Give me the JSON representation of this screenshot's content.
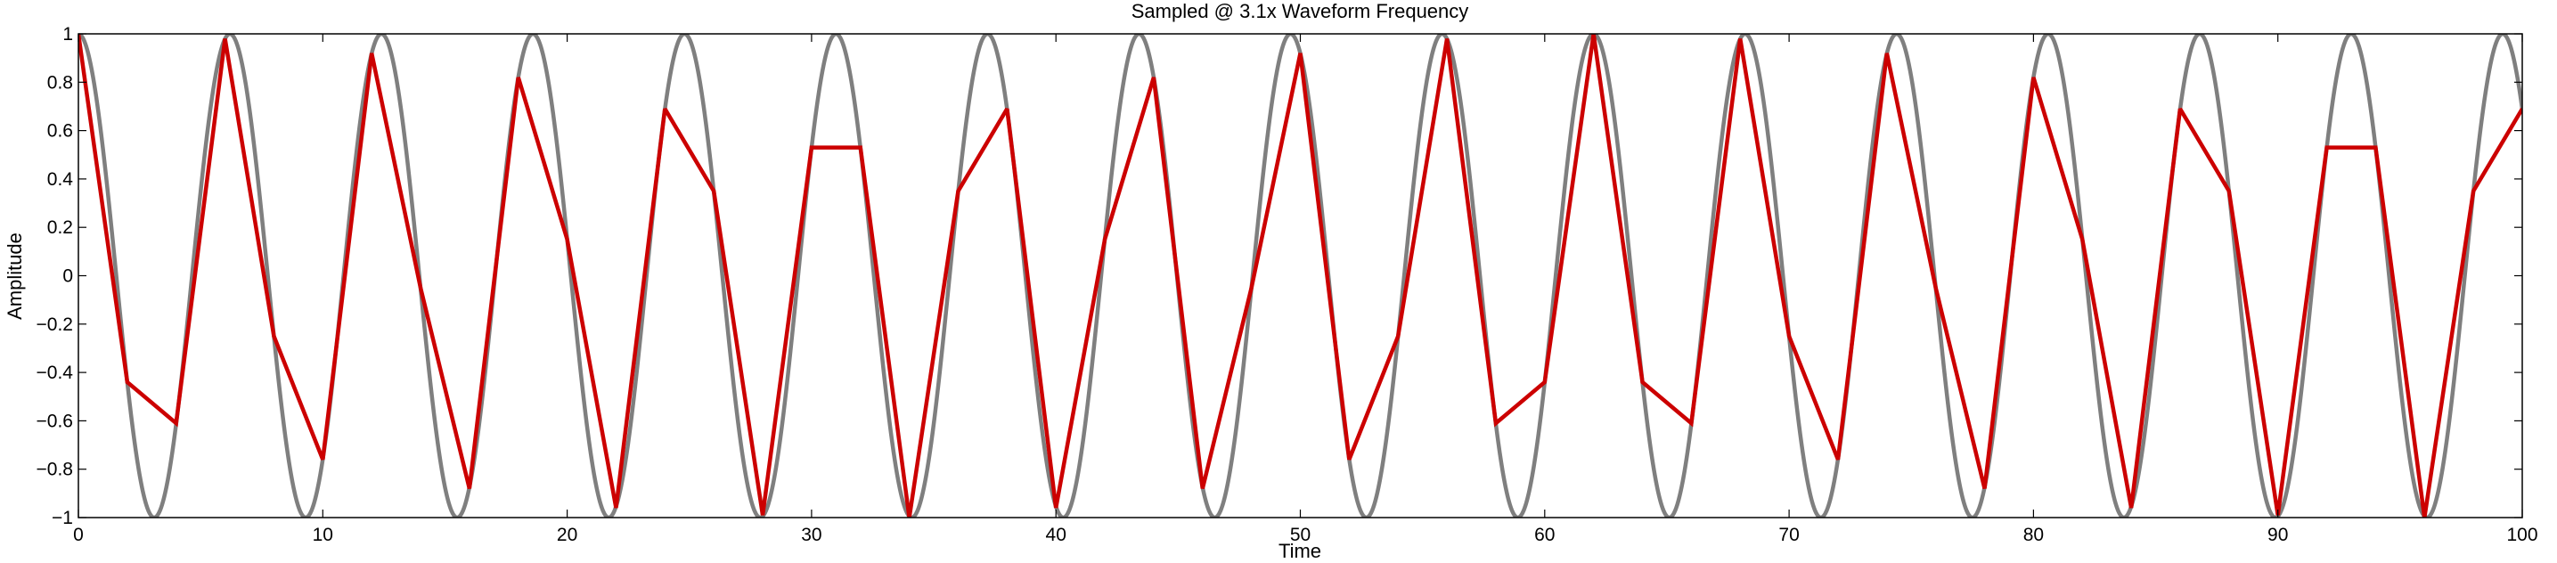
{
  "chart_data": {
    "type": "line",
    "title": "Sampled @ 3.1x Waveform Frequency",
    "xlabel": "Time",
    "ylabel": "Amplitude",
    "xlim": [
      0,
      100
    ],
    "ylim": [
      -1,
      1
    ],
    "xticks": [
      0,
      10,
      20,
      30,
      40,
      50,
      60,
      70,
      80,
      90,
      100
    ],
    "yticks": [
      -1,
      -0.8,
      -0.6,
      -0.4,
      -0.2,
      0,
      0.2,
      0.4,
      0.6,
      0.8,
      1
    ],
    "ytick_labels": [
      "−1",
      "−0.8",
      "−0.6",
      "−0.4",
      "−0.2",
      "0",
      "0.2",
      "0.4",
      "0.6",
      "0.8",
      "1"
    ],
    "grid": false,
    "legend": "none",
    "series": [
      {
        "style": "continuous",
        "color": "#7f7f7f",
        "waveform": "cosine",
        "period": 6.2,
        "amplitude": 1,
        "x_range": [
          0,
          100
        ]
      },
      {
        "style": "sampled-linear",
        "color": "#cc0000",
        "x": [
          0,
          2,
          4,
          6,
          8,
          10,
          12,
          14,
          16,
          18,
          20,
          22,
          24,
          26,
          28,
          30,
          32,
          34,
          36,
          38,
          40,
          42,
          44,
          46,
          48,
          50,
          52,
          54,
          56,
          58,
          60,
          62,
          64,
          66,
          68,
          70,
          72,
          74,
          76,
          78,
          80,
          82,
          84,
          86,
          88,
          90,
          92,
          94,
          96,
          98,
          100
        ],
        "y": [
          1,
          -0.44,
          -0.61,
          0.98,
          -0.25,
          -0.76,
          0.92,
          -0.05,
          -0.88,
          0.82,
          0.15,
          -0.96,
          0.69,
          0.35,
          -0.99,
          0.53,
          0.53,
          -1,
          0.35,
          0.69,
          -0.96,
          0.15,
          0.82,
          -0.88,
          -0.05,
          0.92,
          -0.76,
          -0.25,
          0.98,
          -0.61,
          -0.44,
          1,
          -0.44,
          -0.61,
          0.98,
          -0.25,
          -0.76,
          0.92,
          -0.05,
          -0.88,
          0.82,
          0.15,
          -0.96,
          0.69,
          0.35,
          -0.99,
          0.53,
          0.53,
          -1,
          0.35,
          0.69
        ]
      }
    ]
  }
}
